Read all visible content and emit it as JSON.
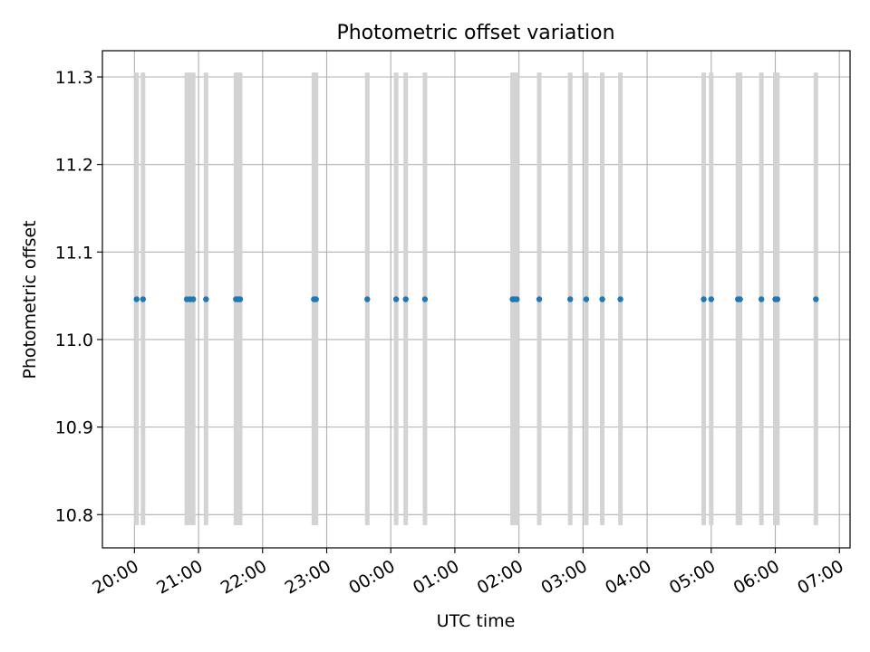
{
  "chart_data": {
    "type": "scatter",
    "title": "Photometric offset variation",
    "xlabel": "UTC time",
    "ylabel": "Photometric offset",
    "xlim": [
      "19:30",
      "07:10"
    ],
    "ylim": [
      10.762,
      11.33
    ],
    "grid": true,
    "x_ticks": [
      "20:00",
      "21:00",
      "22:00",
      "23:00",
      "00:00",
      "01:00",
      "02:00",
      "03:00",
      "04:00",
      "05:00",
      "06:00",
      "07:00"
    ],
    "y_ticks": [
      "10.8",
      "10.9",
      "11.0",
      "11.1",
      "11.2",
      "11.3"
    ],
    "errorbar_range": [
      10.788,
      11.305
    ],
    "y_value": 11.046,
    "x_times": [
      "20:02",
      "20:08",
      "20:49",
      "20:52",
      "20:55",
      "21:07",
      "21:35",
      "21:37",
      "21:39",
      "22:48",
      "22:50",
      "23:38",
      "00:05",
      "00:14",
      "00:32",
      "01:54",
      "01:56",
      "01:58",
      "02:19",
      "02:48",
      "03:03",
      "03:18",
      "03:35",
      "04:53",
      "05:00",
      "05:25",
      "05:27",
      "05:47",
      "06:00",
      "06:02",
      "06:38"
    ],
    "colors": {
      "point": "#1f77b4",
      "errorbar": "#d3d3d3",
      "grid": "#b0b0b0"
    }
  }
}
